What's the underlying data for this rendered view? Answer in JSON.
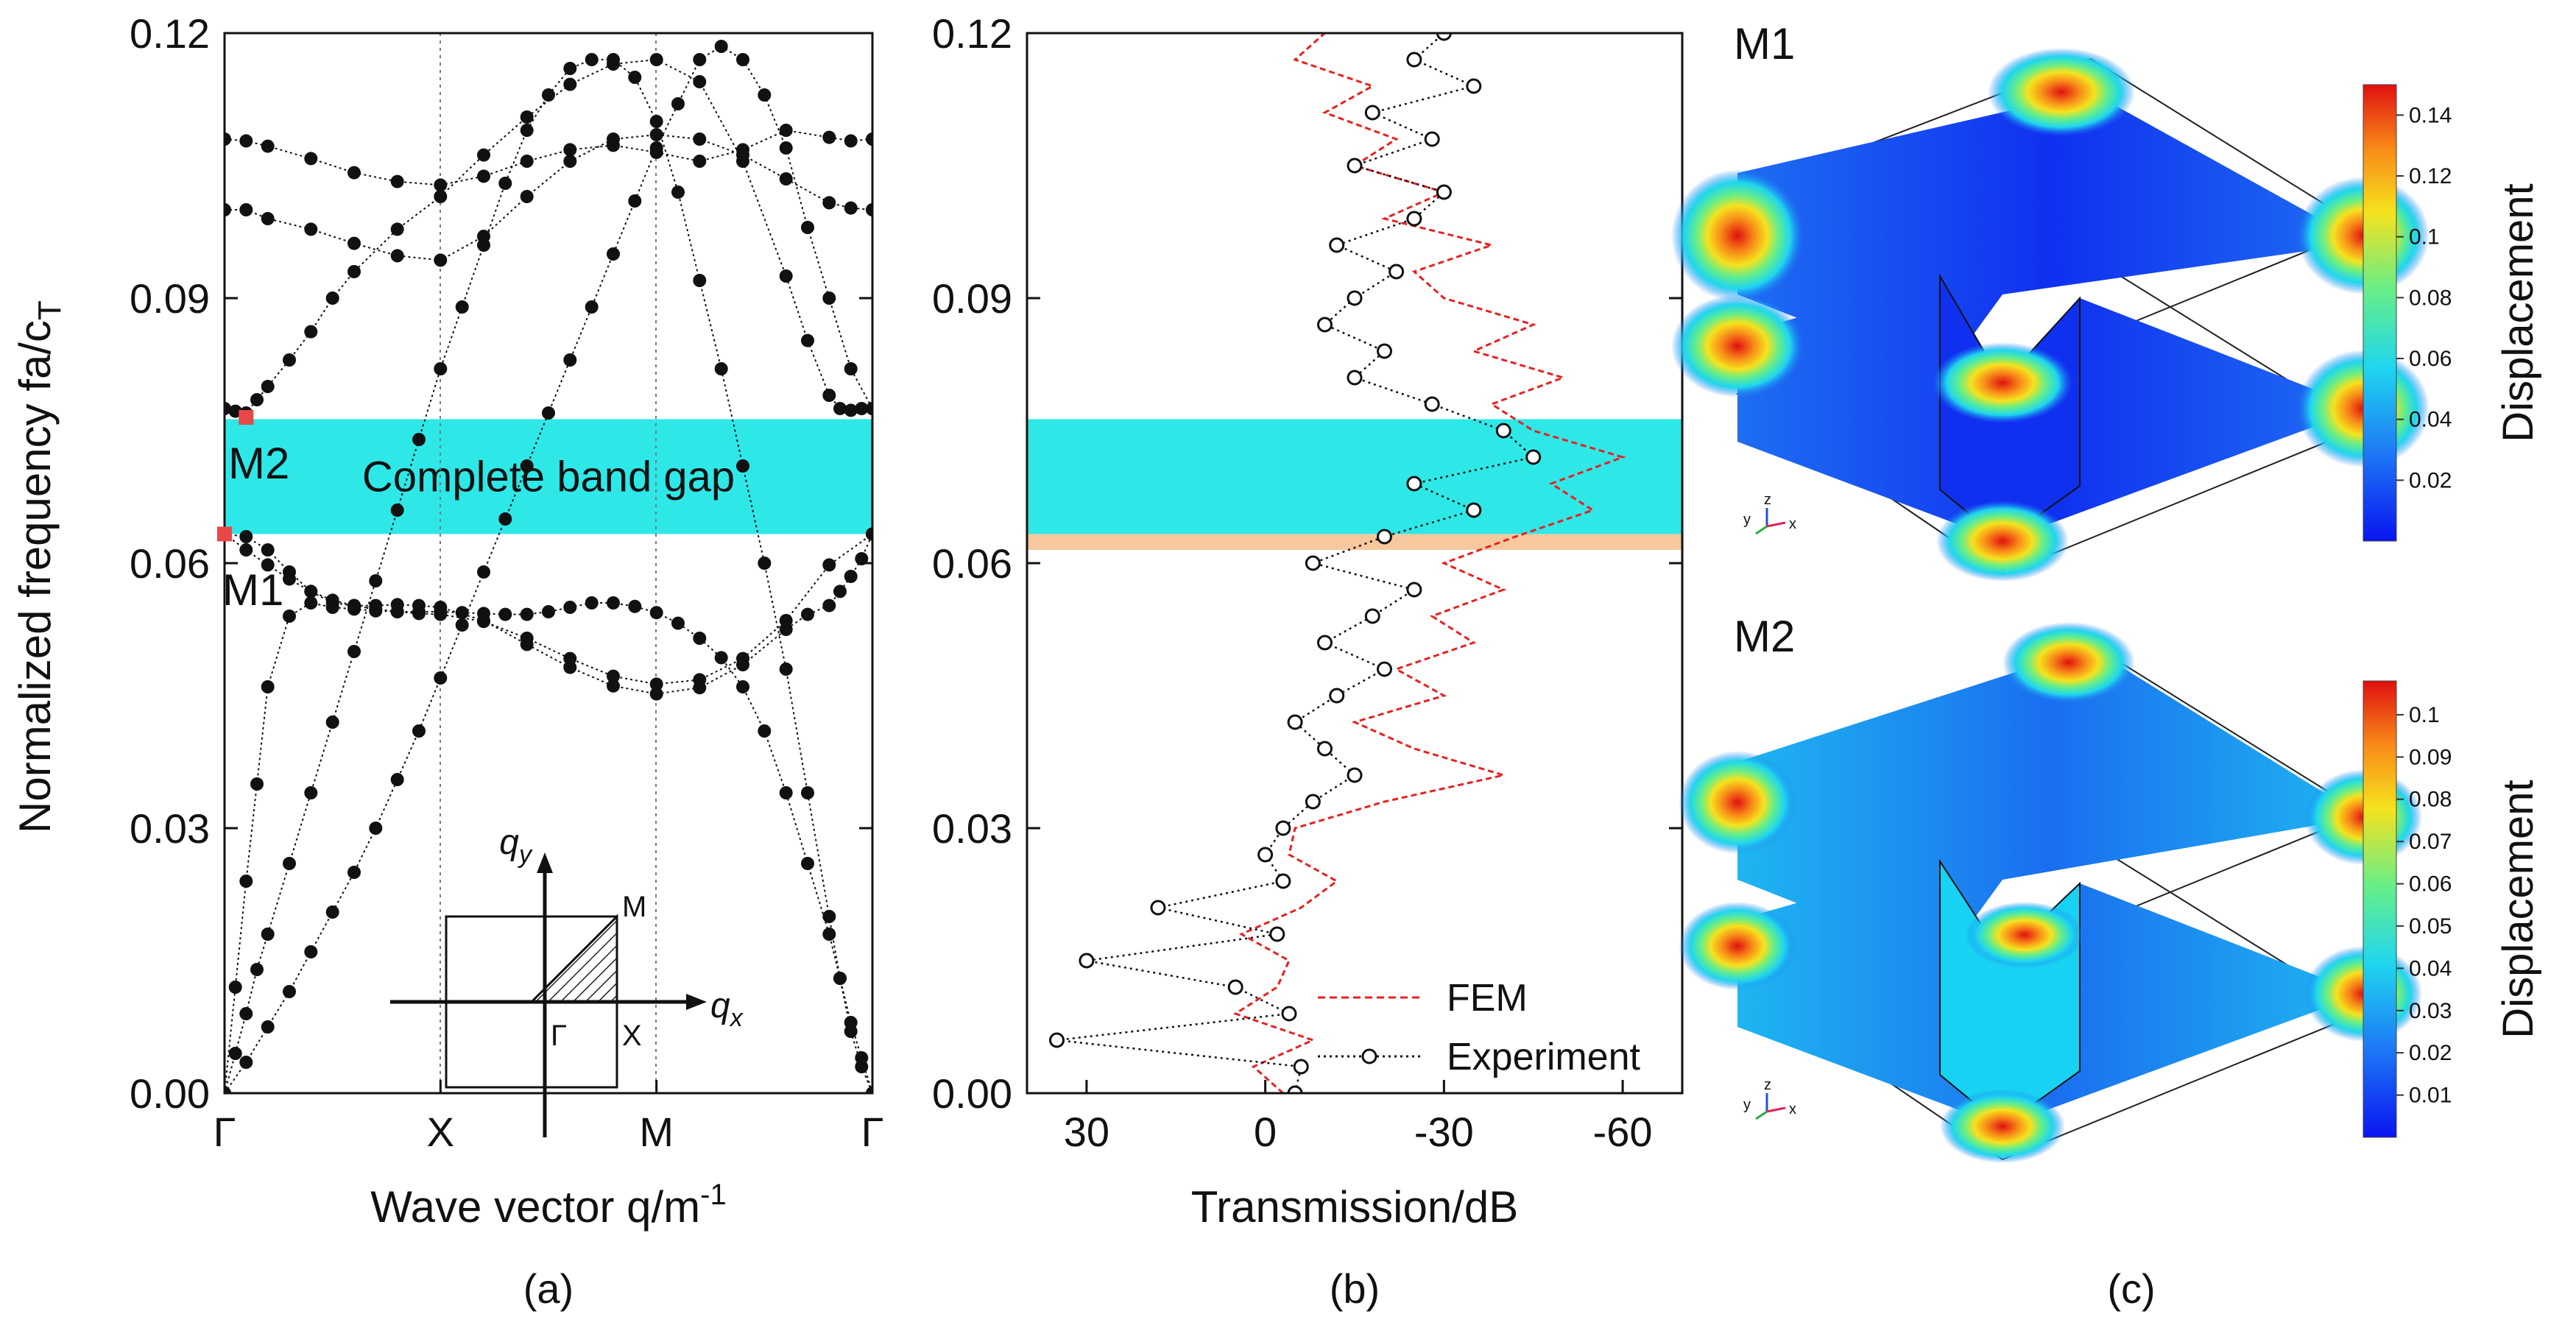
{
  "chart_data": [
    {
      "type": "scatter",
      "panel": "(a)",
      "title": "",
      "xlabel": "Wave vector q/m",
      "xlabel_sup": "-1",
      "ylabel": "Normalized frequency fa/c",
      "ylabel_sub": "T",
      "ylim": [
        0.0,
        0.12
      ],
      "yticks": [
        "0.00",
        "0.03",
        "0.06",
        "0.09",
        "0.12"
      ],
      "xticks": [
        "Γ",
        "X",
        "M",
        "Γ"
      ],
      "band_gap": {
        "label": "Complete band gap",
        "from": 0.0633,
        "to": 0.0763,
        "color": "#2EE8E8"
      },
      "mode_markers": [
        {
          "name": "M1",
          "x": 0.0,
          "y": 0.0633
        },
        {
          "name": "M2",
          "x": 0.1,
          "y": 0.0765
        }
      ],
      "x_note": "x is position along Γ–X–M–Γ path: Γ=0, X=1, M=2, Γ=3",
      "series": [
        {
          "name": "band1",
          "x": [
            0.0,
            0.05,
            0.1,
            0.15,
            0.2,
            0.3,
            0.4,
            0.5,
            0.6,
            0.7,
            0.8,
            0.9,
            1.0,
            1.1,
            1.2,
            1.3,
            1.4,
            1.5,
            1.6,
            1.7,
            1.8,
            1.9,
            2.0,
            2.1,
            2.2,
            2.3,
            2.4,
            2.5,
            2.6,
            2.7,
            2.8,
            2.85,
            2.9,
            2.95,
            3.0
          ],
          "y": [
            0.0,
            0.0045,
            0.009,
            0.014,
            0.018,
            0.026,
            0.034,
            0.042,
            0.05,
            0.058,
            0.066,
            0.074,
            0.082,
            0.089,
            0.096,
            0.103,
            0.109,
            0.113,
            0.116,
            0.117,
            0.117,
            0.115,
            0.11,
            0.102,
            0.092,
            0.082,
            0.071,
            0.06,
            0.048,
            0.034,
            0.02,
            0.013,
            0.007,
            0.003,
            0.0
          ]
        },
        {
          "name": "band2",
          "x": [
            0.0,
            0.05,
            0.1,
            0.15,
            0.2,
            0.3,
            0.4,
            0.5,
            0.6,
            0.7,
            0.8,
            0.9,
            1.0,
            1.1,
            1.2,
            1.3,
            1.4,
            1.5,
            1.6,
            1.7,
            1.8,
            1.9,
            2.0,
            2.1,
            2.2,
            2.3,
            2.4,
            2.5,
            2.6,
            2.7,
            2.8,
            2.85,
            2.9,
            2.95,
            3.0
          ],
          "y": [
            0.0,
            0.012,
            0.024,
            0.035,
            0.046,
            0.054,
            0.0555,
            0.055,
            0.0548,
            0.0546,
            0.0545,
            0.0545,
            0.0545,
            0.0544,
            0.0543,
            0.0542,
            0.0542,
            0.0545,
            0.055,
            0.0555,
            0.0555,
            0.0551,
            0.0544,
            0.0532,
            0.0515,
            0.0493,
            0.046,
            0.041,
            0.034,
            0.026,
            0.018,
            0.013,
            0.008,
            0.004,
            0.0
          ]
        },
        {
          "name": "band3",
          "x": [
            0.0,
            0.1,
            0.2,
            0.3,
            0.4,
            0.5,
            0.6,
            0.7,
            0.8,
            0.9,
            1.0,
            1.2,
            1.4,
            1.6,
            1.8,
            2.0,
            2.2,
            2.4,
            2.6,
            2.7,
            2.8,
            2.85,
            2.9,
            2.95,
            3.0
          ],
          "y": [
            0.0633,
            0.063,
            0.0615,
            0.059,
            0.0568,
            0.0555,
            0.0552,
            0.0552,
            0.0553,
            0.0552,
            0.055,
            0.0535,
            0.0508,
            0.0482,
            0.0461,
            0.0452,
            0.0459,
            0.0485,
            0.0525,
            0.0542,
            0.0552,
            0.0568,
            0.0585,
            0.0605,
            0.0633
          ]
        },
        {
          "name": "band4",
          "x": [
            0.0,
            0.1,
            0.2,
            0.3,
            0.4,
            0.5,
            0.6,
            0.7,
            0.8,
            0.9,
            1.0,
            1.2,
            1.4,
            1.6,
            1.8,
            2.0,
            2.2,
            2.4,
            2.6,
            2.8,
            3.0
          ],
          "y": [
            0.0633,
            0.0615,
            0.0598,
            0.0582,
            0.0568,
            0.0558,
            0.0552,
            0.0548,
            0.0545,
            0.0543,
            0.0542,
            0.0534,
            0.0515,
            0.0492,
            0.0472,
            0.0463,
            0.0468,
            0.0492,
            0.0535,
            0.0598,
            0.0633
          ]
        },
        {
          "name": "band5",
          "x": [
            0.0,
            0.1,
            0.2,
            0.4,
            0.6,
            0.8,
            1.0,
            1.2,
            1.4,
            1.6,
            1.8,
            2.0,
            2.2,
            2.4,
            2.6,
            2.8,
            2.9,
            3.0
          ],
          "y": [
            0.108,
            0.1078,
            0.1072,
            0.1058,
            0.1042,
            0.1032,
            0.1028,
            0.1038,
            0.1055,
            0.1068,
            0.1073,
            0.1065,
            0.1055,
            0.1068,
            0.109,
            0.1082,
            0.1078,
            0.108
          ]
        },
        {
          "name": "band6",
          "x": [
            0.0,
            0.1,
            0.2,
            0.4,
            0.6,
            0.8,
            1.0,
            1.2,
            1.4,
            1.6,
            1.8,
            2.0,
            2.2,
            2.4,
            2.6,
            2.8,
            2.9,
            3.0
          ],
          "y": [
            0.1,
            0.1,
            0.099,
            0.0978,
            0.0962,
            0.0948,
            0.0943,
            0.097,
            0.1015,
            0.1055,
            0.108,
            0.1085,
            0.108,
            0.1062,
            0.1035,
            0.1008,
            0.1002,
            0.1
          ]
        },
        {
          "name": "band7",
          "x": [
            0.0,
            0.05,
            0.1,
            0.15,
            0.2,
            0.3,
            0.4,
            0.5,
            0.6,
            0.8,
            1.0,
            1.2,
            1.4,
            1.6,
            1.8,
            2.0,
            2.2,
            2.4,
            2.6,
            2.7,
            2.8,
            2.85,
            2.9,
            2.95,
            3.0
          ],
          "y": [
            0.0775,
            0.0772,
            0.077,
            0.0785,
            0.08,
            0.083,
            0.0862,
            0.09,
            0.093,
            0.0978,
            0.1015,
            0.1062,
            0.1105,
            0.1142,
            0.1165,
            0.117,
            0.1145,
            0.1055,
            0.0925,
            0.0852,
            0.079,
            0.0775,
            0.0773,
            0.0775,
            0.0775
          ]
        },
        {
          "name": "band8",
          "x": [
            0.0,
            0.1,
            0.2,
            0.3,
            0.4,
            0.5,
            0.6,
            0.7,
            0.8,
            0.9,
            1.0,
            1.1,
            1.2,
            1.3,
            1.4,
            1.5,
            1.6,
            1.7,
            1.8,
            1.9,
            2.0,
            2.1,
            2.2,
            2.3,
            2.4,
            2.5,
            2.6,
            2.7,
            2.8,
            2.9,
            3.0
          ],
          "y": [
            0.0,
            0.0035,
            0.0075,
            0.0115,
            0.016,
            0.0205,
            0.025,
            0.03,
            0.0355,
            0.041,
            0.047,
            0.053,
            0.059,
            0.065,
            0.071,
            0.077,
            0.083,
            0.089,
            0.095,
            0.101,
            0.107,
            0.112,
            0.117,
            0.1185,
            0.117,
            0.113,
            0.107,
            0.098,
            0.09,
            0.082,
            0.0775
          ]
        }
      ]
    },
    {
      "type": "line",
      "panel": "(b)",
      "xlabel": "Transmission/dB",
      "ylabel": "",
      "xlim": [
        40,
        -70
      ],
      "ylim": [
        0.0,
        0.12
      ],
      "xticks": [
        "30",
        "0",
        "-30",
        "-60"
      ],
      "yticks": [
        "0.00",
        "0.03",
        "0.06",
        "0.09",
        "0.12"
      ],
      "bands": [
        {
          "from": 0.0615,
          "to": 0.0633,
          "color": "#F7C89E"
        },
        {
          "from": 0.0633,
          "to": 0.0763,
          "color": "#2EE8E8"
        }
      ],
      "legend": {
        "position": "bottom-right",
        "entries": [
          {
            "label": "FEM",
            "color": "#E82020",
            "style": "dashed"
          },
          {
            "label": "Experiment",
            "color": "#111111",
            "style": "dotted-circle"
          }
        ]
      },
      "series": [
        {
          "name": "FEM",
          "y": [
            0.0,
            0.003,
            0.006,
            0.009,
            0.012,
            0.015,
            0.018,
            0.021,
            0.024,
            0.027,
            0.03,
            0.033,
            0.036,
            0.039,
            0.042,
            0.045,
            0.048,
            0.051,
            0.054,
            0.057,
            0.06,
            0.063,
            0.066,
            0.069,
            0.072,
            0.075,
            0.078,
            0.081,
            0.084,
            0.087,
            0.09,
            0.093,
            0.096,
            0.099,
            0.102,
            0.105,
            0.108,
            0.111,
            0.114,
            0.117,
            0.12
          ],
          "x": [
            -3,
            2,
            -8,
            5,
            -2,
            -4,
            4,
            -6,
            -12,
            -4,
            -5,
            -20,
            -40,
            -25,
            -15,
            -30,
            -22,
            -35,
            -28,
            -40,
            -30,
            -42,
            -55,
            -48,
            -60,
            -45,
            -38,
            -50,
            -35,
            -45,
            -30,
            -25,
            -38,
            -20,
            -30,
            -15,
            -22,
            -10,
            -18,
            -5,
            -10
          ]
        },
        {
          "name": "Experiment",
          "y": [
            0.0,
            0.003,
            0.006,
            0.009,
            0.012,
            0.015,
            0.018,
            0.021,
            0.024,
            0.027,
            0.03,
            0.033,
            0.036,
            0.039,
            0.042,
            0.045,
            0.048,
            0.051,
            0.054,
            0.057,
            0.06,
            0.063,
            0.066,
            0.069,
            0.072,
            0.075,
            0.078,
            0.081,
            0.084,
            0.087,
            0.09,
            0.093,
            0.096,
            0.099,
            0.102,
            0.105,
            0.108,
            0.111,
            0.114,
            0.117,
            0.12
          ],
          "x": [
            -5,
            -6,
            35,
            -4,
            5,
            30,
            -2,
            18,
            -3,
            0,
            -3,
            -8,
            -15,
            -10,
            -5,
            -12,
            -20,
            -10,
            -18,
            -25,
            -8,
            -20,
            -35,
            -25,
            -45,
            -40,
            -28,
            -15,
            -20,
            -10,
            -15,
            -22,
            -12,
            -25,
            -30,
            -15,
            -28,
            -18,
            -35,
            -25,
            -30
          ]
        }
      ]
    }
  ],
  "panel_labels": [
    "(a)",
    "(b)",
    "(c)"
  ],
  "panel_c": {
    "modes": [
      {
        "name": "M1",
        "colorbar_label": "Displacement",
        "colorbar_ticks": [
          "0.14",
          "0.12",
          "0.1",
          "0.08",
          "0.06",
          "0.04",
          "0.02"
        ],
        "triad": {
          "x": "x",
          "y": "y",
          "z": "z"
        }
      },
      {
        "name": "M2",
        "colorbar_label": "Displacement",
        "colorbar_ticks": [
          "0.1",
          "0.09",
          "0.08",
          "0.07",
          "0.06",
          "0.05",
          "0.04",
          "0.03",
          "0.02",
          "0.01"
        ],
        "triad": {
          "x": "x",
          "y": "y",
          "z": "z"
        }
      }
    ]
  },
  "inset": {
    "labels": {
      "qy": "q",
      "qy_sub": "y",
      "qx": "q",
      "qx_sub": "x",
      "M": "M",
      "X": "X",
      "G": "Γ"
    }
  },
  "colors": {
    "gap": "#2EE8E8",
    "orange_band": "#F7C89E",
    "fem": "#E82020",
    "marker": "#E84848",
    "points": "#111111"
  }
}
